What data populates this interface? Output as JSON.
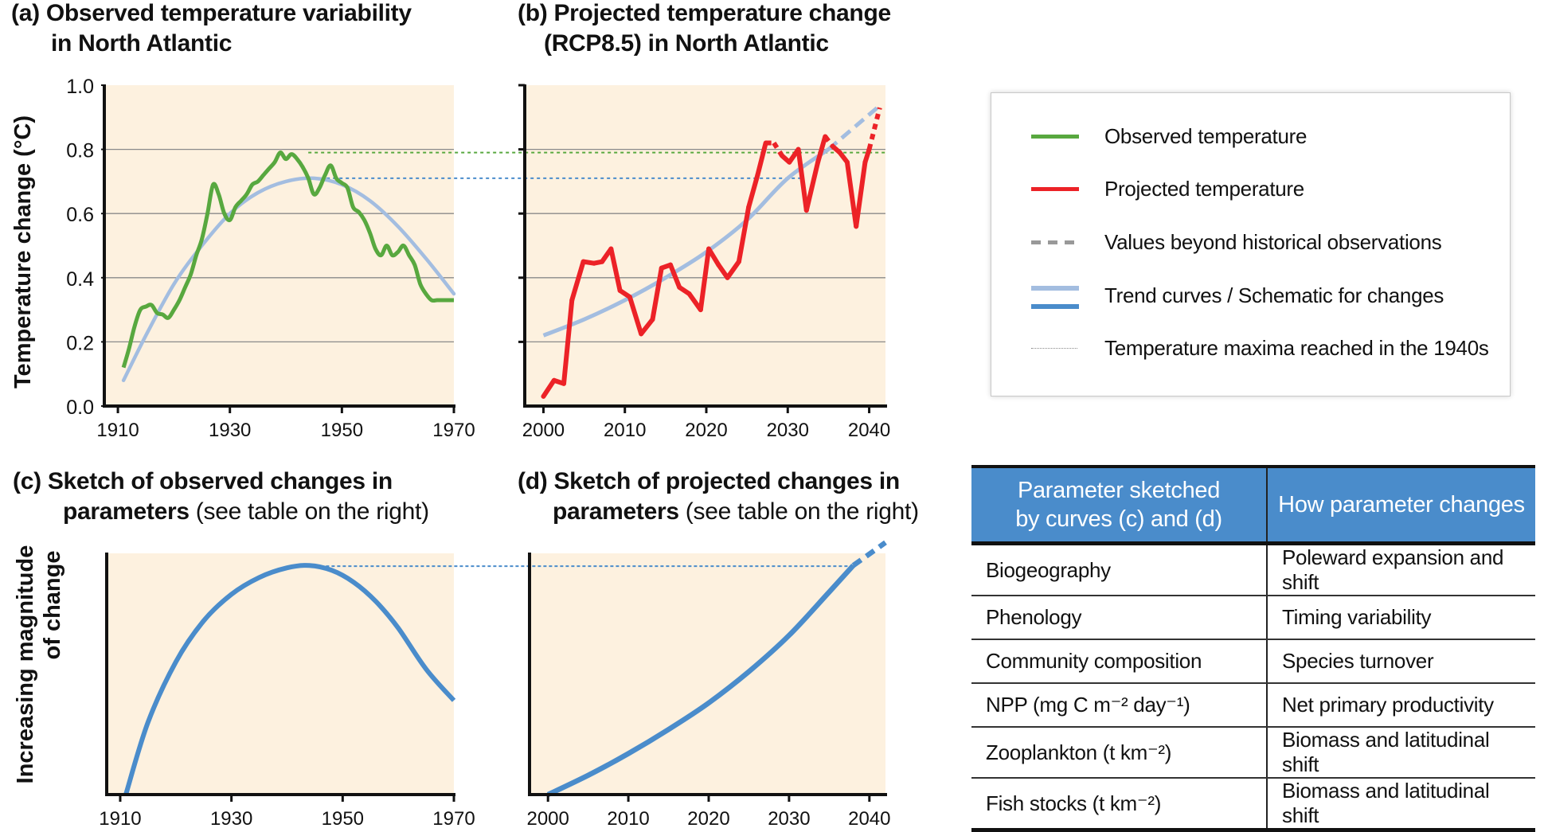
{
  "panels": {
    "a": {
      "label": "(a)",
      "title_line1": "Observed temperature variability",
      "title_line2": "in North Atlantic"
    },
    "b": {
      "label": "(b)",
      "title_line1": "Projected temperature change",
      "title_line2": "(RCP8.5) in North Atlantic"
    },
    "c": {
      "label": "(c)",
      "title_line1": "Sketch of observed changes in",
      "title_line2_bold": "parameters",
      "title_line2_normal": " (see table on the right)"
    },
    "d": {
      "label": "(d)",
      "title_line1": "Sketch of projected changes in",
      "title_line2_bold": "parameters",
      "title_line2_normal": " (see table on the right)"
    }
  },
  "colors": {
    "observed": "#58a83f",
    "projected": "#ec2227",
    "trend_light": "#a3bde0",
    "schematic": "#4a8ccb",
    "beyond": "#999999",
    "plot_bg": "#fdf1df",
    "maxima_green": "#58a83f",
    "maxima_blue": "#4a8ccb"
  },
  "legend": {
    "items": [
      {
        "key": "observed",
        "label": "Observed temperature"
      },
      {
        "key": "projected",
        "label": "Projected temperature"
      },
      {
        "key": "beyond",
        "label": "Values beyond historical observations"
      },
      {
        "key": "trend",
        "label": "Trend curves / Schematic for changes"
      },
      {
        "key": "maxima",
        "label": "Temperature maxima reached in the 1940s"
      }
    ]
  },
  "table": {
    "headers": [
      "Parameter sketched by curves (c) and (d)",
      "How parameter changes"
    ],
    "header_line1": "Parameter sketched",
    "header_line2": "by curves (c) and (d)",
    "rows": [
      {
        "parameter": "Biogeography",
        "change": "Poleward expansion and shift"
      },
      {
        "parameter": "Phenology",
        "change": "Timing variability"
      },
      {
        "parameter": "Community composition",
        "change": "Species turnover"
      },
      {
        "parameter": "NPP (mg C m⁻² day⁻¹)",
        "change": "Net primary productivity"
      },
      {
        "parameter": "Zooplankton (t km⁻²)",
        "change": "Biomass and latitudinal shift"
      },
      {
        "parameter": "Fish stocks  (t km⁻²)",
        "change": "Biomass and latitudinal shift"
      }
    ]
  },
  "chart_data": [
    {
      "id": "a",
      "type": "line",
      "title": "(a) Observed temperature variability in North Atlantic",
      "xlabel": "",
      "ylabel": "Temperature change (°C)",
      "xlim": [
        1908,
        1970
      ],
      "ylim": [
        0.0,
        1.0
      ],
      "xticks": [
        1910,
        1930,
        1950,
        1970
      ],
      "yticks": [
        0.0,
        0.2,
        0.4,
        0.6,
        0.8,
        1.0
      ],
      "ytick_labels": [
        "0.0",
        "0.2",
        "0.4",
        "0.6",
        "0.8",
        "1.0"
      ],
      "grid": true,
      "series": [
        {
          "name": "Observed temperature",
          "style": "solid",
          "x": [
            1911,
            1912,
            1913,
            1914,
            1915,
            1916,
            1917,
            1918,
            1919,
            1920,
            1921,
            1922,
            1923,
            1924,
            1925,
            1926,
            1927,
            1928,
            1929,
            1930,
            1931,
            1932,
            1933,
            1934,
            1935,
            1936,
            1937,
            1938,
            1939,
            1940,
            1941,
            1942,
            1943,
            1944,
            1945,
            1946,
            1947,
            1948,
            1949,
            1950,
            1951,
            1952,
            1953,
            1954,
            1955,
            1956,
            1957,
            1958,
            1959,
            1960,
            1961,
            1962,
            1963,
            1964,
            1965,
            1966,
            1967,
            1968,
            1969,
            1970
          ],
          "y": [
            0.12,
            0.18,
            0.25,
            0.3,
            0.31,
            0.315,
            0.29,
            0.285,
            0.275,
            0.3,
            0.33,
            0.37,
            0.41,
            0.47,
            0.52,
            0.6,
            0.69,
            0.66,
            0.6,
            0.58,
            0.62,
            0.64,
            0.66,
            0.69,
            0.7,
            0.72,
            0.74,
            0.76,
            0.79,
            0.77,
            0.785,
            0.77,
            0.745,
            0.71,
            0.66,
            0.68,
            0.72,
            0.75,
            0.71,
            0.695,
            0.68,
            0.62,
            0.605,
            0.58,
            0.54,
            0.49,
            0.47,
            0.5,
            0.47,
            0.48,
            0.5,
            0.47,
            0.44,
            0.38,
            0.35,
            0.33,
            0.33,
            0.33,
            0.33,
            0.33
          ]
        },
        {
          "name": "Trend curve",
          "style": "solid",
          "x": [
            1911,
            1915,
            1920,
            1925,
            1930,
            1935,
            1940,
            1945,
            1950,
            1955,
            1960,
            1965,
            1970
          ],
          "y": [
            0.08,
            0.22,
            0.38,
            0.5,
            0.6,
            0.665,
            0.7,
            0.71,
            0.69,
            0.64,
            0.56,
            0.46,
            0.35
          ]
        },
        {
          "name": "Observed maximum (1940s)",
          "style": "dotted",
          "x": [
            1944,
            1970
          ],
          "y": [
            0.79,
            0.79
          ]
        },
        {
          "name": "Trend maximum (1940s)",
          "style": "dotted",
          "x": [
            1945,
            1970
          ],
          "y": [
            0.71,
            0.71
          ]
        }
      ]
    },
    {
      "id": "b",
      "type": "line",
      "title": "(b) Projected temperature change (RCP8.5) in North Atlantic",
      "xlabel": "",
      "ylabel": "",
      "xlim": [
        1998,
        2042
      ],
      "ylim": [
        0.0,
        1.0
      ],
      "xticks": [
        2000,
        2010,
        2020,
        2030,
        2040
      ],
      "grid": true,
      "series": [
        {
          "name": "Projected temperature",
          "style": "solid",
          "x": [
            2000,
            2001.3,
            2002.5,
            2003.5,
            2004.9,
            2006.2,
            2007.2,
            2008.3,
            2009.4,
            2010.6,
            2012,
            2013.4,
            2014.5,
            2015.6,
            2016.7,
            2017.9,
            2019.3,
            2020.3,
            2021.5,
            2022.6,
            2024,
            2025.2,
            2026.3,
            2027.3,
            2028.3,
            2029.3,
            2030.2,
            2031.3,
            2032.3,
            2033.7,
            2034.6,
            2035.5,
            2036.4,
            2037.3,
            2038.4,
            2039.5,
            2040,
            2041.3
          ],
          "y": [
            0.03,
            0.08,
            0.07,
            0.33,
            0.45,
            0.445,
            0.45,
            0.49,
            0.36,
            0.34,
            0.225,
            0.27,
            0.43,
            0.44,
            0.37,
            0.35,
            0.3,
            0.49,
            0.44,
            0.4,
            0.45,
            0.62,
            0.72,
            0.82,
            0.82,
            0.78,
            0.76,
            0.8,
            0.61,
            0.76,
            0.84,
            0.81,
            0.79,
            0.76,
            0.56,
            0.76,
            0.8,
            0.93
          ],
          "beyond_historical_segments": [
            [
              2027.3,
              2029.3
            ],
            [
              2034,
              2036
            ],
            [
              2040,
              2041.3
            ]
          ]
        },
        {
          "name": "Trend curve",
          "style": "solid-then-dashed",
          "x": [
            2000,
            2005,
            2010,
            2015,
            2020,
            2025,
            2030,
            2035,
            2041
          ],
          "y": [
            0.22,
            0.27,
            0.33,
            0.4,
            0.48,
            0.58,
            0.71,
            0.8,
            0.93
          ],
          "dashed_from_x": 2035
        },
        {
          "name": "Observed maximum (1940s)",
          "style": "dotted",
          "x": [
            1998,
            2042
          ],
          "y": [
            0.79,
            0.79
          ]
        },
        {
          "name": "Trend maximum (1940s)",
          "style": "dotted",
          "x": [
            1998,
            2033
          ],
          "y": [
            0.71,
            0.71
          ]
        }
      ]
    },
    {
      "id": "c",
      "type": "line",
      "title": "(c) Sketch of observed changes in parameters (see table on the right)",
      "xlabel": "",
      "ylabel": "Increasing magnitude of change",
      "xlim": [
        1908,
        1970
      ],
      "ylim": [
        0,
        1
      ],
      "xticks": [
        1910,
        1930,
        1950,
        1970
      ],
      "grid": false,
      "series": [
        {
          "name": "Schematic change",
          "style": "solid",
          "x": [
            1911,
            1915,
            1920,
            1925,
            1930,
            1935,
            1940,
            1944,
            1948,
            1952,
            1956,
            1960,
            1965,
            1970
          ],
          "y": [
            0.0,
            0.3,
            0.55,
            0.72,
            0.83,
            0.9,
            0.94,
            0.95,
            0.93,
            0.88,
            0.8,
            0.69,
            0.52,
            0.39
          ]
        },
        {
          "name": "Maximum (1940s)",
          "style": "dotted",
          "x": [
            1944,
            1970
          ],
          "y": [
            0.95,
            0.95
          ]
        }
      ]
    },
    {
      "id": "d",
      "type": "line",
      "title": "(d) Sketch of projected changes in parameters (see table on the right)",
      "xlabel": "",
      "ylabel": "",
      "xlim": [
        1998,
        2042
      ],
      "ylim": [
        0,
        1
      ],
      "xticks": [
        2000,
        2010,
        2020,
        2030,
        2040
      ],
      "grid": false,
      "series": [
        {
          "name": "Schematic change",
          "style": "solid-then-dashed",
          "x": [
            2000,
            2005,
            2010,
            2015,
            2020,
            2025,
            2030,
            2035,
            2038,
            2042
          ],
          "y": [
            0.0,
            0.08,
            0.17,
            0.27,
            0.38,
            0.51,
            0.66,
            0.84,
            0.95,
            1.08
          ],
          "dashed_from_x": 2038
        },
        {
          "name": "Maximum (1940s)",
          "style": "dotted",
          "x": [
            1998,
            2038
          ],
          "y": [
            0.95,
            0.95
          ]
        }
      ]
    }
  ]
}
